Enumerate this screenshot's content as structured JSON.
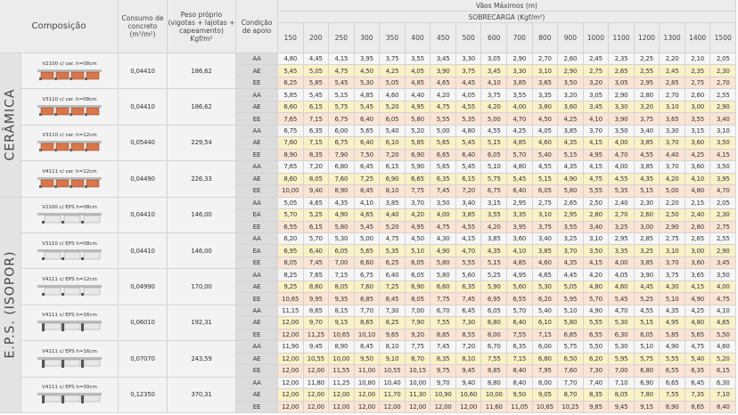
{
  "header": {
    "composicao": "Composição",
    "consumo": "Consumo de concreto (m³/m²)",
    "peso": "Peso próprio (vigotas + lajotas + capeamento) Kgf/m²",
    "condicao": "Condição de apoio",
    "vaos": "Vãos Máximos (m)",
    "sobrecarga": "SOBRECARGA (Kgf/m²)",
    "loads": [
      "150",
      "200",
      "250",
      "300",
      "350",
      "400",
      "450",
      "500",
      "600",
      "700",
      "800",
      "900",
      "1000",
      "1100",
      "1200",
      "1300",
      "1400",
      "1500"
    ]
  },
  "sections": [
    {
      "label": "CERÂMICA",
      "groups": [
        {
          "name": "V2100  c/  cer.  h=08cm",
          "consumo": "0,04410",
          "peso": "186,62",
          "rows": [
            {
              "cond": "AA",
              "values": [
                "4,80",
                "4,45",
                "4,15",
                "3,95",
                "3,75",
                "3,55",
                "3,45",
                "3,30",
                "3,05",
                "2,90",
                "2,70",
                "2,60",
                "2,45",
                "2,35",
                "2,25",
                "2,20",
                "2,10",
                "2,05"
              ]
            },
            {
              "cond": "AE",
              "values": [
                "5,45",
                "5,05",
                "4,75",
                "4,50",
                "4,25",
                "4,05",
                "3,90",
                "3,75",
                "3,45",
                "3,30",
                "3,10",
                "2,90",
                "2,75",
                "2,65",
                "2,55",
                "2,45",
                "2,35",
                "2,30"
              ]
            },
            {
              "cond": "EE",
              "values": [
                "6,25",
                "5,85",
                "5,45",
                "5,30",
                "5,05",
                "4,85",
                "4,65",
                "4,45",
                "4,10",
                "3,85",
                "3,65",
                "3,50",
                "3,20",
                "3,05",
                "2,95",
                "2,85",
                "2,75",
                "2,70"
              ]
            }
          ]
        },
        {
          "name": "V3110  c/  cer.  h=08cm",
          "consumo": "0,04410",
          "peso": "186,62",
          "rows": [
            {
              "cond": "AA",
              "values": [
                "5,85",
                "5,45",
                "5,15",
                "4,85",
                "4,60",
                "4,40",
                "4,20",
                "4,05",
                "3,75",
                "3,55",
                "3,35",
                "3,20",
                "3,05",
                "2,90",
                "2,80",
                "2,70",
                "2,60",
                "2,55"
              ]
            },
            {
              "cond": "AE",
              "values": [
                "6,60",
                "6,15",
                "5,75",
                "5,45",
                "5,20",
                "4,95",
                "4,75",
                "4,55",
                "4,20",
                "4,00",
                "3,80",
                "3,60",
                "3,45",
                "3,30",
                "3,20",
                "3,10",
                "3,00",
                "2,90"
              ]
            },
            {
              "cond": "EE",
              "values": [
                "7,65",
                "7,15",
                "6,75",
                "6,40",
                "6,05",
                "5,80",
                "5,55",
                "5,35",
                "5,00",
                "4,70",
                "4,50",
                "4,25",
                "4,10",
                "3,90",
                "3,75",
                "3,65",
                "3,55",
                "3,40"
              ]
            }
          ]
        },
        {
          "name": "V3110  c/  cer.  h=12cm",
          "consumo": "0,05440",
          "peso": "229,54",
          "rows": [
            {
              "cond": "AA",
              "values": [
                "6,75",
                "6,35",
                "6,00",
                "5,65",
                "5,40",
                "5,20",
                "5,00",
                "4,80",
                "4,55",
                "4,25",
                "4,05",
                "3,85",
                "3,70",
                "3,50",
                "3,40",
                "3,30",
                "3,15",
                "3,10"
              ]
            },
            {
              "cond": "AE",
              "values": [
                "7,60",
                "7,15",
                "6,75",
                "6,40",
                "6,10",
                "5,85",
                "5,65",
                "5,45",
                "5,15",
                "4,85",
                "4,60",
                "4,35",
                "4,15",
                "4,00",
                "3,85",
                "3,70",
                "3,60",
                "3,50"
              ]
            },
            {
              "cond": "EE",
              "values": [
                "8,90",
                "8,35",
                "7,90",
                "7,50",
                "7,20",
                "6,90",
                "6,65",
                "6,40",
                "6,05",
                "5,70",
                "5,40",
                "5,15",
                "4,95",
                "4,70",
                "4,55",
                "4,40",
                "4,25",
                "4,15"
              ]
            }
          ]
        },
        {
          "name": "V4111  c/  cer.  h=12cm",
          "consumo": "0,04490",
          "peso": "226,33",
          "rows": [
            {
              "cond": "AA",
              "values": [
                "7,65",
                "7,20",
                "6,80",
                "6,45",
                "6,15",
                "5,90",
                "5,65",
                "5,45",
                "5,10",
                "4,80",
                "4,55",
                "4,35",
                "4,15",
                "4,00",
                "3,85",
                "3,70",
                "3,60",
                "3,50"
              ]
            },
            {
              "cond": "AE",
              "values": [
                "8,60",
                "8,05",
                "7,60",
                "7,25",
                "6,90",
                "6,65",
                "6,35",
                "6,15",
                "5,75",
                "5,45",
                "5,15",
                "4,90",
                "4,75",
                "4,55",
                "4,35",
                "4,20",
                "4,10",
                "3,95"
              ]
            },
            {
              "cond": "EE",
              "values": [
                "10,00",
                "9,40",
                "8,90",
                "8,45",
                "8,10",
                "7,75",
                "7,45",
                "7,20",
                "6,75",
                "6,40",
                "6,05",
                "5,80",
                "5,55",
                "5,35",
                "5,15",
                "5,00",
                "4,80",
                "4,70"
              ]
            }
          ]
        }
      ]
    },
    {
      "label": "E.P.S. (ISOPOR)",
      "groups": [
        {
          "name": "V2100  c/  EPS  h=08cm",
          "consumo": "0,04410",
          "peso": "146,00",
          "rows": [
            {
              "cond": "AA",
              "values": [
                "5,05",
                "4,65",
                "4,35",
                "4,10",
                "3,85",
                "3,70",
                "3,50",
                "3,40",
                "3,15",
                "2,95",
                "2,75",
                "2,65",
                "2,50",
                "2,40",
                "2,30",
                "2,20",
                "2,15",
                "2,05"
              ]
            },
            {
              "cond": "EA",
              "values": [
                "5,70",
                "5,25",
                "4,90",
                "4,65",
                "4,40",
                "4,20",
                "4,00",
                "3,85",
                "3,55",
                "3,35",
                "3,10",
                "2,95",
                "2,80",
                "2,70",
                "2,60",
                "2,50",
                "2,40",
                "2,30"
              ]
            },
            {
              "cond": "EE",
              "values": [
                "6,55",
                "6,15",
                "5,80",
                "5,45",
                "5,20",
                "4,95",
                "4,75",
                "4,55",
                "4,20",
                "3,95",
                "3,75",
                "3,55",
                "3,40",
                "3,25",
                "3,00",
                "2,90",
                "2,80",
                "2,75"
              ]
            }
          ]
        },
        {
          "name": "V3110  c/  EPS  h=08cm",
          "consumo": "0,04410",
          "peso": "146,00",
          "rows": [
            {
              "cond": "AA",
              "values": [
                "6,20",
                "5,70",
                "5,30",
                "5,00",
                "4,75",
                "4,50",
                "4,30",
                "4,15",
                "3,85",
                "3,60",
                "3,40",
                "3,25",
                "3,10",
                "2,95",
                "2,85",
                "2,75",
                "2,65",
                "2,55"
              ]
            },
            {
              "cond": "EA",
              "values": [
                "6,95",
                "6,40",
                "6,05",
                "5,65",
                "5,35",
                "5,10",
                "4,90",
                "4,70",
                "4,35",
                "4,10",
                "3,85",
                "3,70",
                "3,50",
                "3,35",
                "3,25",
                "3,10",
                "3,00",
                "2,90"
              ]
            },
            {
              "cond": "EE",
              "values": [
                "8,05",
                "7,45",
                "7,00",
                "6,60",
                "6,25",
                "6,05",
                "5,80",
                "5,55",
                "5,15",
                "4,85",
                "4,60",
                "4,35",
                "4,15",
                "4,00",
                "3,85",
                "3,70",
                "3,60",
                "3,45"
              ]
            }
          ]
        },
        {
          "name": "V4111  c/  EPS  h=12cm",
          "consumo": "0,04990",
          "peso": "170,00",
          "rows": [
            {
              "cond": "AA",
              "values": [
                "8,25",
                "7,65",
                "7,15",
                "6,75",
                "6,40",
                "6,05",
                "5,80",
                "5,60",
                "5,25",
                "4,95",
                "4,65",
                "4,45",
                "4,20",
                "4,05",
                "3,90",
                "3,75",
                "3,65",
                "3,50"
              ]
            },
            {
              "cond": "AE",
              "values": [
                "9,25",
                "8,60",
                "8,05",
                "7,60",
                "7,25",
                "6,90",
                "6,60",
                "6,35",
                "5,90",
                "5,60",
                "5,30",
                "5,05",
                "4,80",
                "4,60",
                "4,45",
                "4,30",
                "4,15",
                "4,00"
              ]
            },
            {
              "cond": "EE",
              "values": [
                "10,65",
                "9,95",
                "9,35",
                "8,85",
                "8,45",
                "8,05",
                "7,75",
                "7,45",
                "6,95",
                "6,55",
                "6,20",
                "5,95",
                "5,70",
                "5,45",
                "5,25",
                "5,10",
                "4,90",
                "4,75"
              ]
            }
          ]
        },
        {
          "name": "V4111  c/  EPS  h=16cm",
          "consumo": "0,06010",
          "peso": "192,31",
          "rows": [
            {
              "cond": "AA",
              "values": [
                "11,15",
                "8,65",
                "8,15",
                "7,70",
                "7,30",
                "7,00",
                "6,70",
                "6,45",
                "6,05",
                "5,70",
                "5,40",
                "5,10",
                "4,90",
                "4,70",
                "4,55",
                "4,35",
                "4,25",
                "4,10"
              ]
            },
            {
              "cond": "AE",
              "values": [
                "12,00",
                "9,70",
                "9,15",
                "8,65",
                "8,25",
                "7,90",
                "7,55",
                "7,30",
                "6,80",
                "6,40",
                "6,10",
                "5,80",
                "5,55",
                "5,30",
                "5,15",
                "4,95",
                "4,80",
                "4,65"
              ]
            },
            {
              "cond": "EE",
              "values": [
                "12,00",
                "11,25",
                "10,65",
                "10,10",
                "9,65",
                "9,20",
                "8,85",
                "8,55",
                "8,00",
                "7,55",
                "7,15",
                "6,85",
                "6,55",
                "6,30",
                "6,05",
                "5,85",
                "5,65",
                "5,50"
              ]
            }
          ]
        },
        {
          "name": "V4111  c/  EPS  h=16cm",
          "consumo": "0,07070",
          "peso": "243,59",
          "rows": [
            {
              "cond": "AA",
              "values": [
                "11,90",
                "9,45",
                "8,90",
                "8,45",
                "8,10",
                "7,75",
                "7,45",
                "7,20",
                "6,70",
                "6,35",
                "6,00",
                "5,75",
                "5,50",
                "5,30",
                "5,10",
                "4,90",
                "4,75",
                "4,60"
              ]
            },
            {
              "cond": "AE",
              "values": [
                "12,00",
                "10,55",
                "10,00",
                "9,50",
                "9,10",
                "8,70",
                "8,35",
                "8,10",
                "7,55",
                "7,15",
                "6,80",
                "6,50",
                "6,20",
                "5,95",
                "5,75",
                "5,55",
                "5,40",
                "5,20"
              ]
            },
            {
              "cond": "EE",
              "values": [
                "12,00",
                "12,00",
                "11,55",
                "11,00",
                "10,55",
                "10,15",
                "9,75",
                "9,45",
                "8,85",
                "8,40",
                "7,95",
                "7,60",
                "7,30",
                "7,00",
                "6,80",
                "6,55",
                "6,35",
                "6,15"
              ]
            }
          ]
        },
        {
          "name": "V4111  c/  EPS  h=30cm",
          "consumo": "0,12350",
          "peso": "370,31",
          "rows": [
            {
              "cond": "AA",
              "values": [
                "12,00",
                "11,80",
                "11,25",
                "10,80",
                "10,40",
                "10,00",
                "9,70",
                "9,40",
                "8,80",
                "8,40",
                "8,00",
                "7,70",
                "7,40",
                "7,10",
                "6,90",
                "6,65",
                "6,45",
                "6,30"
              ]
            },
            {
              "cond": "AE",
              "values": [
                "12,00",
                "12,00",
                "12,00",
                "12,00",
                "11,70",
                "11,30",
                "10,90",
                "10,60",
                "10,00",
                "9,50",
                "9,05",
                "8,70",
                "8,35",
                "8,05",
                "7,80",
                "7,55",
                "7,35",
                "7,10"
              ]
            },
            {
              "cond": "EE",
              "values": [
                "12,00",
                "12,00",
                "12,00",
                "12,00",
                "12,00",
                "12,00",
                "12,00",
                "12,00",
                "11,60",
                "11,05",
                "10,65",
                "10,25",
                "9,85",
                "9,45",
                "9,15",
                "8,90",
                "8,65",
                "8,40"
              ]
            }
          ]
        }
      ]
    }
  ]
}
